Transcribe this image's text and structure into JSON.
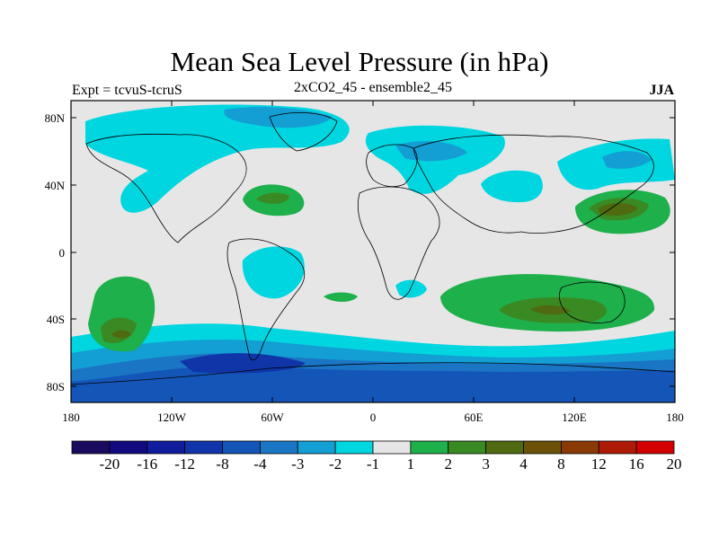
{
  "title": "Mean Sea Level Pressure (in hPa)",
  "subtitle": "2xCO2_45 - ensemble2_45",
  "left_label": "Expt = tcvuS-tcruS",
  "right_label": "JJA",
  "axes": {
    "lat_ticks": [
      "80N",
      "40N",
      "0",
      "40S",
      "80S"
    ],
    "lon_ticks": [
      "180",
      "120W",
      "60W",
      "0",
      "60E",
      "120E",
      "180"
    ]
  },
  "colorbar": {
    "labels": [
      "-20",
      "-16",
      "-12",
      "-8",
      "-4",
      "-3",
      "-2",
      "-1",
      "1",
      "2",
      "3",
      "4",
      "8",
      "12",
      "16",
      "20"
    ],
    "colors": [
      "#1a0b5e",
      "#120a80",
      "#0f1c9c",
      "#0f35a8",
      "#1455b8",
      "#1a75c4",
      "#139fd3",
      "#00d6e0",
      "#e6e6e6",
      "#1eb04b",
      "#3a8a24",
      "#4f6a10",
      "#6b5208",
      "#8a3a05",
      "#ad1b06",
      "#d40000"
    ]
  }
}
